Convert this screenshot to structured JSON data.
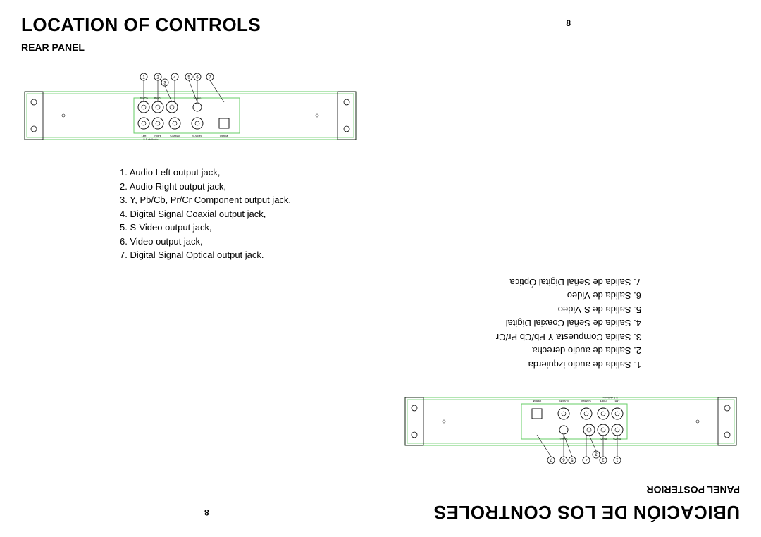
{
  "english": {
    "title": "LOCATION OF CONTROLS",
    "subtitle": "REAR PANEL",
    "page_number_top": "8",
    "page_number_bottom": "8",
    "list": [
      "1. Audio Left output jack,",
      "2. Audio Right output jack,",
      "3. Y, Pb/Cb, Pr/Cr Component output jack,",
      "4. Digital Signal Coaxial output jack,",
      "5. S-Video output jack,",
      "6. Video output jack,",
      "7. Digital Signal Optical output jack."
    ],
    "panel": {
      "outline_color": "#66cc66",
      "stroke_color": "#000000",
      "callouts": [
        "1",
        "2",
        "3",
        "4",
        "5",
        "6",
        "7"
      ],
      "jack_labels_top": [
        "Pb/Cb",
        "Pr/Cr",
        "",
        "Video"
      ],
      "jack_labels_bot": [
        "Left",
        "Right",
        "Coaxial",
        "S-Video",
        "Optical"
      ],
      "section_label": "5.1 ch Audio"
    }
  },
  "spanish": {
    "title": "UBICACIÓN DE LOS CONTROLES",
    "subtitle": "PANEL POSTERIOR",
    "page_number_top": "8",
    "page_number_bottom": "8",
    "list": [
      "1.    Salida de audio izquierda",
      "2.    Salida de audio derecha",
      "3.    Salida Compuesta Y Pb/Cb Pr/Cr",
      "4.    Salida de Señal Coaxial Digital",
      "5.    Salida de S-Video",
      "6.    Salida de Video",
      "7.    Salida de Señal Digital Óptica"
    ],
    "panel": {
      "outline_color": "#66cc66",
      "stroke_color": "#000000",
      "callouts": [
        "1",
        "2",
        "3",
        "4",
        "5",
        "6",
        "7"
      ],
      "jack_labels_top": [
        "Pb/Cb",
        "Pr/Cr",
        "",
        "Video"
      ],
      "jack_labels_bot": [
        "Left",
        "Right",
        "Coaxial",
        "S-Video",
        "Optical"
      ],
      "section_label": "5.1 ch Audio"
    }
  }
}
